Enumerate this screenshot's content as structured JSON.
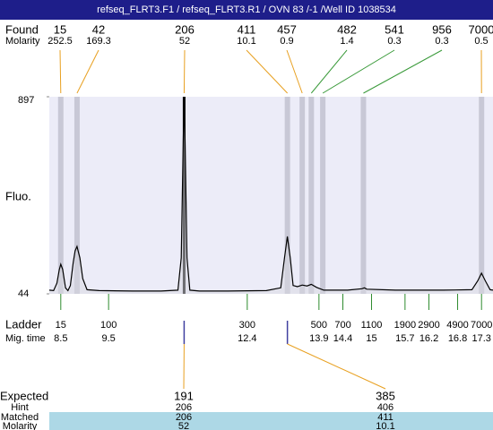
{
  "chart_data": {
    "type": "line",
    "title": "refseq_FLRT3.F1 / refseq_FLRT3.R1 / OVN 83 /-1 /Well ID 1038534",
    "y_label": "Fluo.",
    "xlim": [
      8.26,
      17.54
    ],
    "ylim": [
      44,
      897
    ],
    "yticks": [
      44,
      897
    ],
    "color": "#000000",
    "x": [
      8.26,
      8.35,
      8.42,
      8.47,
      8.5,
      8.54,
      8.6,
      8.65,
      8.7,
      8.76,
      8.8,
      8.84,
      8.9,
      8.96,
      9.05,
      9.3,
      10,
      10.6,
      10.95,
      11.02,
      11.06,
      11.08,
      11.1,
      11.14,
      11.2,
      11.4,
      12,
      12.8,
      13.1,
      13.18,
      13.24,
      13.3,
      13.36,
      13.45,
      13.55,
      13.65,
      13.74,
      13.85,
      14,
      14.5,
      14.8,
      14.85,
      14.9,
      15.5,
      16.5,
      17.1,
      17.22,
      17.3,
      17.38,
      17.48,
      17.54
    ],
    "values": [
      60,
      58,
      90,
      150,
      172,
      150,
      70,
      58,
      80,
      180,
      230,
      249,
      200,
      110,
      62,
      58,
      56,
      56,
      60,
      200,
      700,
      897,
      700,
      200,
      60,
      56,
      56,
      58,
      70,
      200,
      292,
      200,
      80,
      75,
      82,
      78,
      85,
      72,
      60,
      60,
      66,
      70,
      64,
      60,
      60,
      62,
      100,
      133,
      100,
      62,
      60
    ],
    "found": {
      "label": "Found",
      "sublabel": "Molarity",
      "sizes": [
        15,
        42,
        206,
        411,
        457,
        482,
        541,
        956,
        7000
      ],
      "molarity": [
        252.5,
        169.3,
        52,
        10.1,
        0.9,
        1.4,
        0.3,
        0.3,
        0.5
      ],
      "x": [
        8.5,
        8.84,
        11.08,
        13.24,
        13.55,
        13.74,
        13.98,
        14.83,
        17.3
      ],
      "line_colors": [
        "#e8a020",
        "#e8a020",
        "#e8a020",
        "#e8a020",
        "#e8a020",
        "#3a9a3a",
        "#3a9a3a",
        "#3a9a3a",
        "#e8a020"
      ]
    },
    "ladder": {
      "label": "Ladder",
      "sublabel": "Mig. time",
      "sizes": [
        15,
        100,
        300,
        500,
        700,
        1100,
        1900,
        2900,
        4900,
        7000
      ],
      "x": [
        8.5,
        9.5,
        12.4,
        13.9,
        14.4,
        15,
        15.7,
        16.2,
        16.8,
        17.3
      ]
    },
    "expected": {
      "label": "Expected",
      "values": [
        191,
        385
      ],
      "x": [
        11.08,
        13.24
      ],
      "hint": {
        "label": "Hint",
        "values": [
          206,
          406
        ]
      },
      "matched": {
        "label": "Matched",
        "values": [
          206,
          411
        ]
      },
      "molarity": {
        "label": "Molarity",
        "values": [
          52,
          10.1
        ]
      }
    }
  }
}
